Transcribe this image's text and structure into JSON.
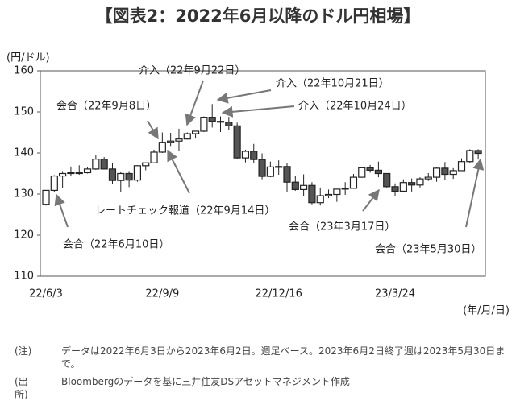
{
  "chart_data": {
    "type": "candlestick",
    "title": "【図表2：2022年6月以降のドル円相場】",
    "y_label": "(円/ドル)",
    "x_label": "(年/月/日)",
    "categories": [
      "22/6/3",
      null,
      null,
      null,
      null,
      null,
      null,
      null,
      null,
      null,
      null,
      null,
      null,
      null,
      "22/9/9",
      null,
      null,
      null,
      null,
      null,
      null,
      null,
      null,
      null,
      null,
      null,
      null,
      null,
      "22/12/16",
      null,
      null,
      null,
      null,
      null,
      null,
      null,
      null,
      null,
      null,
      null,
      null,
      null,
      "23/3/24",
      null,
      null,
      null,
      null,
      null,
      null,
      null,
      null,
      null,
      null
    ],
    "series": [
      {
        "open": [
          127.5,
          130.9,
          134.4,
          135.0,
          135.2,
          135.2,
          136.1,
          138.5,
          136.1,
          133.3,
          135.0,
          133.4,
          136.9,
          137.6,
          140.2,
          142.6,
          142.9,
          143.4,
          144.7,
          145.3,
          148.7,
          147.7,
          147.5,
          146.6,
          138.8,
          140.4,
          138.4,
          134.3,
          136.6,
          136.7,
          132.9,
          131.1,
          132.1,
          127.9,
          129.6,
          129.9,
          131.2,
          131.4,
          134.1,
          136.4,
          135.8,
          135.0,
          131.8,
          130.7,
          132.8,
          132.2,
          133.7,
          134.1,
          136.3,
          134.8,
          135.7,
          137.9,
          140.6
        ],
        "high": [
          130.9,
          134.6,
          135.6,
          136.7,
          137.0,
          136.6,
          139.4,
          139.0,
          137.5,
          135.5,
          135.6,
          137.0,
          137.6,
          140.8,
          145.0,
          144.9,
          145.9,
          145.0,
          145.4,
          148.9,
          151.9,
          148.9,
          148.8,
          147.4,
          140.8,
          142.2,
          139.9,
          137.9,
          138.2,
          137.5,
          134.4,
          134.8,
          132.9,
          131.6,
          131.1,
          131.2,
          132.9,
          134.9,
          136.5,
          137.1,
          137.9,
          135.1,
          132.6,
          133.6,
          133.8,
          134.1,
          135.1,
          136.6,
          137.8,
          136.3,
          138.7,
          140.9,
          140.9
        ],
        "low": [
          127.2,
          130.4,
          131.5,
          134.3,
          134.7,
          135.0,
          135.9,
          136.4,
          132.5,
          130.4,
          131.7,
          133.0,
          135.8,
          137.5,
          140.0,
          141.7,
          140.4,
          143.3,
          143.5,
          145.1,
          146.2,
          145.1,
          145.6,
          138.5,
          137.7,
          137.5,
          133.6,
          134.1,
          134.7,
          130.6,
          130.8,
          129.5,
          127.5,
          127.2,
          129.0,
          128.1,
          129.8,
          131.3,
          134.0,
          135.2,
          134.1,
          131.6,
          129.6,
          130.4,
          130.6,
          131.6,
          133.2,
          133.0,
          133.5,
          133.7,
          135.6,
          137.5,
          138.4
        ],
        "close": [
          130.9,
          134.4,
          135.0,
          135.2,
          135.2,
          136.1,
          138.5,
          136.1,
          133.3,
          135.0,
          133.4,
          136.9,
          137.6,
          140.2,
          142.6,
          142.9,
          143.4,
          144.7,
          145.3,
          148.7,
          147.7,
          147.5,
          146.6,
          138.8,
          140.4,
          138.4,
          134.3,
          136.6,
          136.7,
          132.9,
          131.1,
          132.1,
          127.9,
          129.6,
          129.9,
          131.2,
          131.4,
          134.1,
          136.4,
          135.8,
          135.0,
          131.8,
          130.7,
          132.8,
          132.2,
          133.7,
          134.1,
          136.3,
          134.8,
          135.7,
          137.9,
          140.6,
          139.9
        ],
        "up_color": "#ffffff",
        "down_color": "#555555",
        "line_color": "#222222"
      }
    ],
    "ylim": [
      110,
      160
    ],
    "yticks": [
      110,
      120,
      130,
      140,
      150,
      160
    ],
    "annotations": [
      "会合（22年9月8日）",
      "介入（22年9月22日）",
      "介入（22年10月21日）",
      "介入（22年10月24日）",
      "レートチェック報道（22年9月14日）",
      "会合（22年6月10日）",
      "会合（23年3月17日）",
      "会合（23年5月30日）"
    ]
  },
  "notes": [
    {
      "tag": "(注)",
      "text": "データは2022年6月3日から2023年6月2日。週足ベース。2023年6月2日終了週は2023年5月30日まで。"
    },
    {
      "tag": "(出所)",
      "text": "Bloombergのデータを基に三井住友DSアセットマネジメント作成"
    }
  ]
}
